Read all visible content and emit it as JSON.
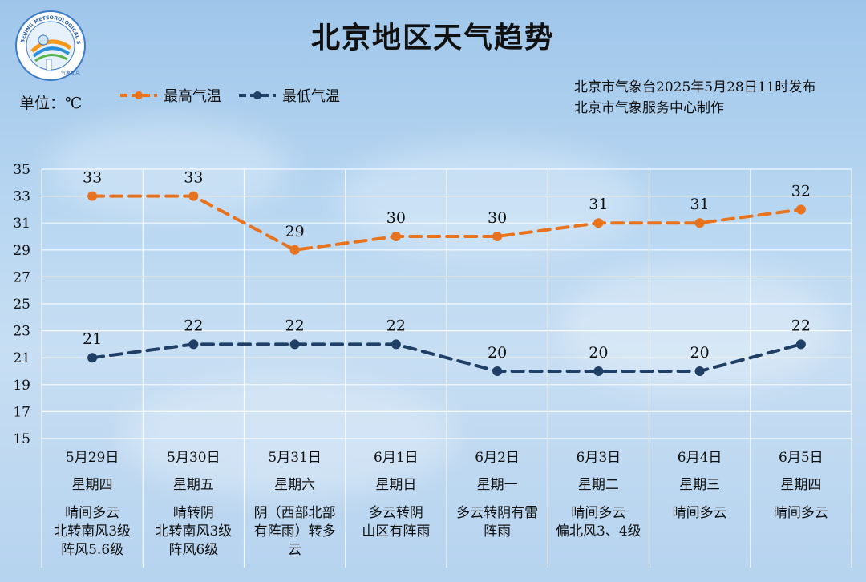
{
  "title": "北京地区天气趋势",
  "logo": {
    "ring_text": "BEIJING METEOROLOGICAL SERVICE",
    "cn_text": "气象北京",
    "icon": "weather-service-emblem-icon"
  },
  "unit_label": "单位：℃",
  "issuer": {
    "line1": "北京市气象台2025年5月28日11时发布",
    "line2": "北京市气象服务中心制作"
  },
  "colors": {
    "high": "#e8731f",
    "low": "#1f3f66",
    "grid": "#ffffff"
  },
  "chart_data": {
    "type": "line",
    "title": "北京地区天气趋势",
    "ylim": [
      15,
      35
    ],
    "y_ticks": [
      "15",
      "17",
      "19",
      "21",
      "23",
      "25",
      "27",
      "29",
      "31",
      "33",
      "35"
    ],
    "grid": true,
    "legend_position": "top-left",
    "categories": [
      "5月29日",
      "5月30日",
      "5月31日",
      "6月1日",
      "6月2日",
      "6月3日",
      "6月4日",
      "6月5日"
    ],
    "series": [
      {
        "name": "最高气温",
        "values": [
          33,
          33,
          29,
          30,
          30,
          31,
          31,
          32
        ]
      },
      {
        "name": "最低气温",
        "values": [
          21,
          22,
          22,
          22,
          20,
          20,
          20,
          22
        ]
      }
    ]
  },
  "forecast": [
    {
      "date": "5月29日",
      "weekday": "星期四",
      "weather": [
        "晴间多云",
        "北转南风3级",
        "阵风5.6级"
      ]
    },
    {
      "date": "5月30日",
      "weekday": "星期五",
      "weather": [
        "晴转阴",
        "北转南风3级",
        "阵风6级"
      ]
    },
    {
      "date": "5月31日",
      "weekday": "星期六",
      "weather": [
        "阴（西部北部",
        "有阵雨）转多",
        "云"
      ]
    },
    {
      "date": "6月1日",
      "weekday": "星期日",
      "weather": [
        "多云转阴",
        "山区有阵雨"
      ]
    },
    {
      "date": "6月2日",
      "weekday": "星期一",
      "weather": [
        "多云转阴有雷",
        "阵雨"
      ]
    },
    {
      "date": "6月3日",
      "weekday": "星期二",
      "weather": [
        "晴间多云",
        "偏北风3、4级"
      ]
    },
    {
      "date": "6月4日",
      "weekday": "星期三",
      "weather": [
        "晴间多云"
      ]
    },
    {
      "date": "6月5日",
      "weekday": "星期四",
      "weather": [
        "晴间多云"
      ]
    }
  ]
}
